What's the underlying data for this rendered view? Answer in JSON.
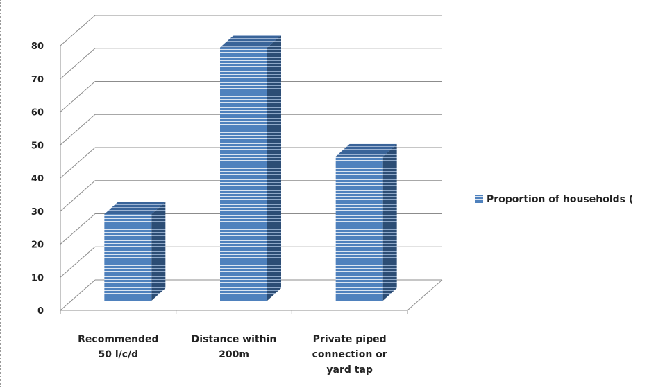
{
  "chart_data": {
    "type": "bar",
    "title": "",
    "xlabel": "",
    "ylabel": "",
    "categories": [
      [
        "Recommended",
        "50 l/c/d"
      ],
      [
        "Distance within",
        "200m"
      ],
      [
        "Private piped",
        "connection or",
        "yard tap"
      ]
    ],
    "series": [
      {
        "name": "Proportion of households (",
        "values": [
          27,
          79,
          45
        ]
      }
    ],
    "ylim": [
      0,
      80
    ],
    "yticks": [
      "0",
      "10",
      "20",
      "30",
      "40",
      "50",
      "60",
      "70",
      "80"
    ],
    "grid": true,
    "legend_position": "right",
    "style": "3d",
    "colors": {
      "front": "#4f81bd",
      "side": "#2c4d75",
      "top": "#3a6499",
      "stripe": "#dbe5f1"
    }
  }
}
